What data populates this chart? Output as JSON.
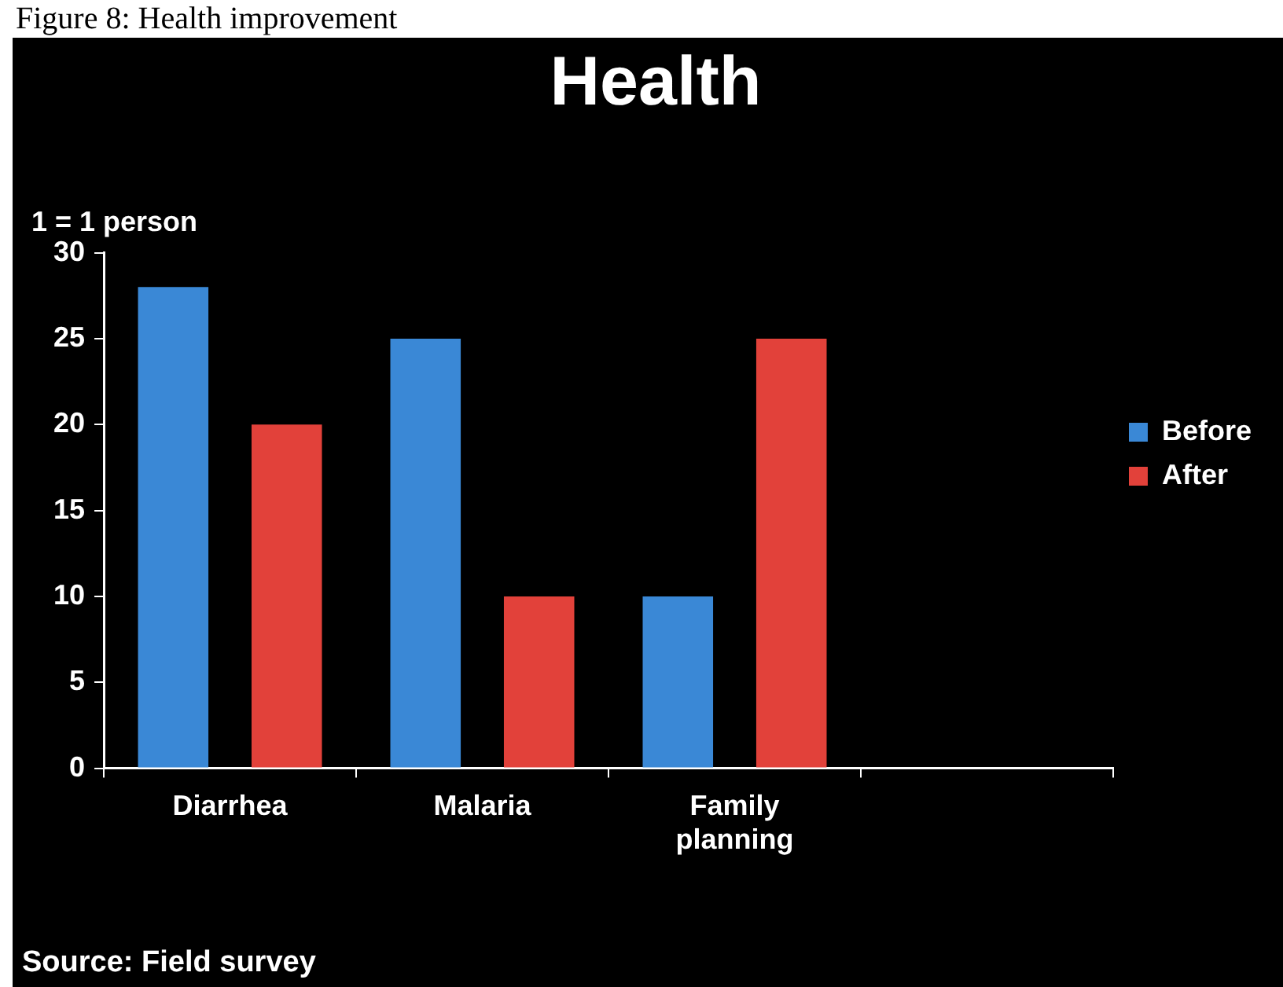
{
  "chart_data": {
    "type": "bar",
    "title": "Health",
    "ylabel": "1 = 1 person",
    "categories": [
      "Diarrhea",
      "Malaria",
      "Family planning",
      null
    ],
    "series": [
      {
        "name": "Before",
        "color": "#3a88d6",
        "values": [
          28,
          25,
          10,
          null
        ]
      },
      {
        "name": "After",
        "color": "#e2413a",
        "values": [
          20,
          10,
          25,
          null
        ]
      }
    ],
    "ylim": [
      0,
      30
    ],
    "yticks": [
      0,
      5,
      10,
      15,
      20,
      25,
      30
    ],
    "grid": false,
    "legend": "right",
    "annotations": [
      "Figure 8: Health improvement",
      "Source: Field survey"
    ]
  }
}
